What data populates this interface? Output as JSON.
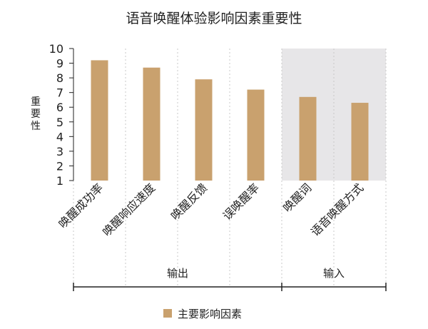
{
  "chart_data": {
    "type": "bar",
    "title": "语音唤醒体验影响因素重要性",
    "ylabel": "重要性",
    "xlabel": "",
    "ylim": [
      1,
      10
    ],
    "yticks": [
      1,
      2,
      3,
      4,
      5,
      6,
      7,
      8,
      9,
      10
    ],
    "categories": [
      "唤醒成功率",
      "唤醒响应速度",
      "唤醒反馈",
      "误唤醒率",
      "唤醒词",
      "语音唤醒方式"
    ],
    "series": [
      {
        "name": "主要影响因素",
        "values": [
          9.2,
          8.7,
          7.9,
          7.2,
          6.7,
          6.3
        ]
      }
    ],
    "groups": [
      {
        "label": "输出",
        "start": 0,
        "end": 3
      },
      {
        "label": "输入",
        "start": 4,
        "end": 5,
        "shaded": true
      }
    ],
    "legend": "bottom-center",
    "grid": false,
    "colors": {
      "bar": "#c9a16e",
      "shade": "#e7e6e8",
      "guide": "#c8c8c8",
      "axis": "#222222"
    }
  }
}
